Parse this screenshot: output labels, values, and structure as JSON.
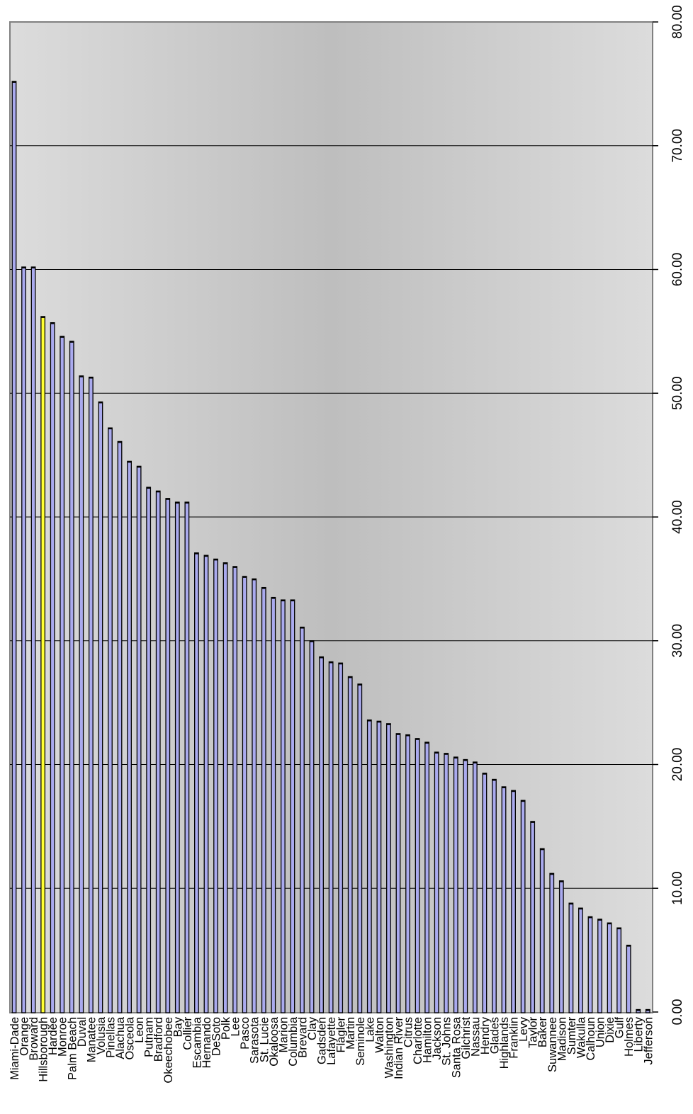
{
  "chart_data": {
    "type": "bar",
    "orientation": "vertical-rotated",
    "categories": [
      "Miami-Dade",
      "Orange",
      "Broward",
      "Hillsborough",
      "Hardee",
      "Monroe",
      "Palm Beach",
      "Duval",
      "Manatee",
      "Volusia",
      "Pinellas",
      "Alachua",
      "Osceola",
      "Leon",
      "Putnam",
      "Bradford",
      "Okeechobee",
      "Bay",
      "Collier",
      "Escambia",
      "Hernando",
      "DeSoto",
      "Polk",
      "Lee",
      "Pasco",
      "Sarasota",
      "St. Lucie",
      "Okaloosa",
      "Marion",
      "Columbia",
      "Brevard",
      "Clay",
      "Gadsden",
      "Lafayette",
      "Flagler",
      "Martin",
      "Seminole",
      "Lake",
      "Walton",
      "Washington",
      "Indian River",
      "Citrus",
      "Charlotte",
      "Hamilton",
      "Jackson",
      "St. Johns",
      "Santa Rosa",
      "Gilchrist",
      "Nassau",
      "Hendry",
      "Glades",
      "Highlands",
      "Franklin",
      "Levy",
      "Taylor",
      "Baker",
      "Suwannee",
      "Madison",
      "Sumter",
      "Wakulla",
      "Calhoun",
      "Union",
      "Dixie",
      "Gulf",
      "Holmes",
      "Liberty",
      "Jefferson"
    ],
    "values": [
      75.2,
      60.2,
      60.2,
      56.2,
      55.7,
      54.6,
      54.2,
      51.4,
      51.3,
      49.3,
      47.2,
      46.1,
      44.5,
      44.1,
      42.4,
      42.1,
      41.5,
      41.2,
      41.2,
      37.1,
      36.9,
      36.6,
      36.3,
      36.0,
      35.2,
      35.0,
      34.3,
      33.5,
      33.3,
      33.3,
      31.1,
      30.0,
      28.7,
      28.3,
      28.2,
      27.1,
      26.5,
      23.6,
      23.5,
      23.3,
      22.5,
      22.4,
      22.1,
      21.8,
      21.0,
      20.9,
      20.6,
      20.4,
      20.2,
      19.3,
      18.8,
      18.2,
      17.9,
      17.1,
      15.4,
      13.2,
      11.2,
      10.6,
      8.8,
      8.4,
      7.7,
      7.5,
      7.2,
      6.8,
      5.4,
      0.2,
      0.2
    ],
    "highlight_category": "Hillsborough",
    "ylim": [
      0,
      80
    ],
    "yticks": [
      "0.00",
      "10.00",
      "20.00",
      "30.00",
      "40.00",
      "50.00",
      "60.00",
      "70.00",
      "80.00"
    ],
    "grid": true,
    "legend": "none",
    "title": "",
    "xlabel": "",
    "ylabel": "",
    "colors": {
      "bar": "#aaaaee",
      "highlight": "#ffff33",
      "bar_outline": "#000000",
      "plot_bg_edge": "#dcdcdc",
      "plot_bg_center": "#bebebe",
      "grid": "#000000"
    }
  }
}
